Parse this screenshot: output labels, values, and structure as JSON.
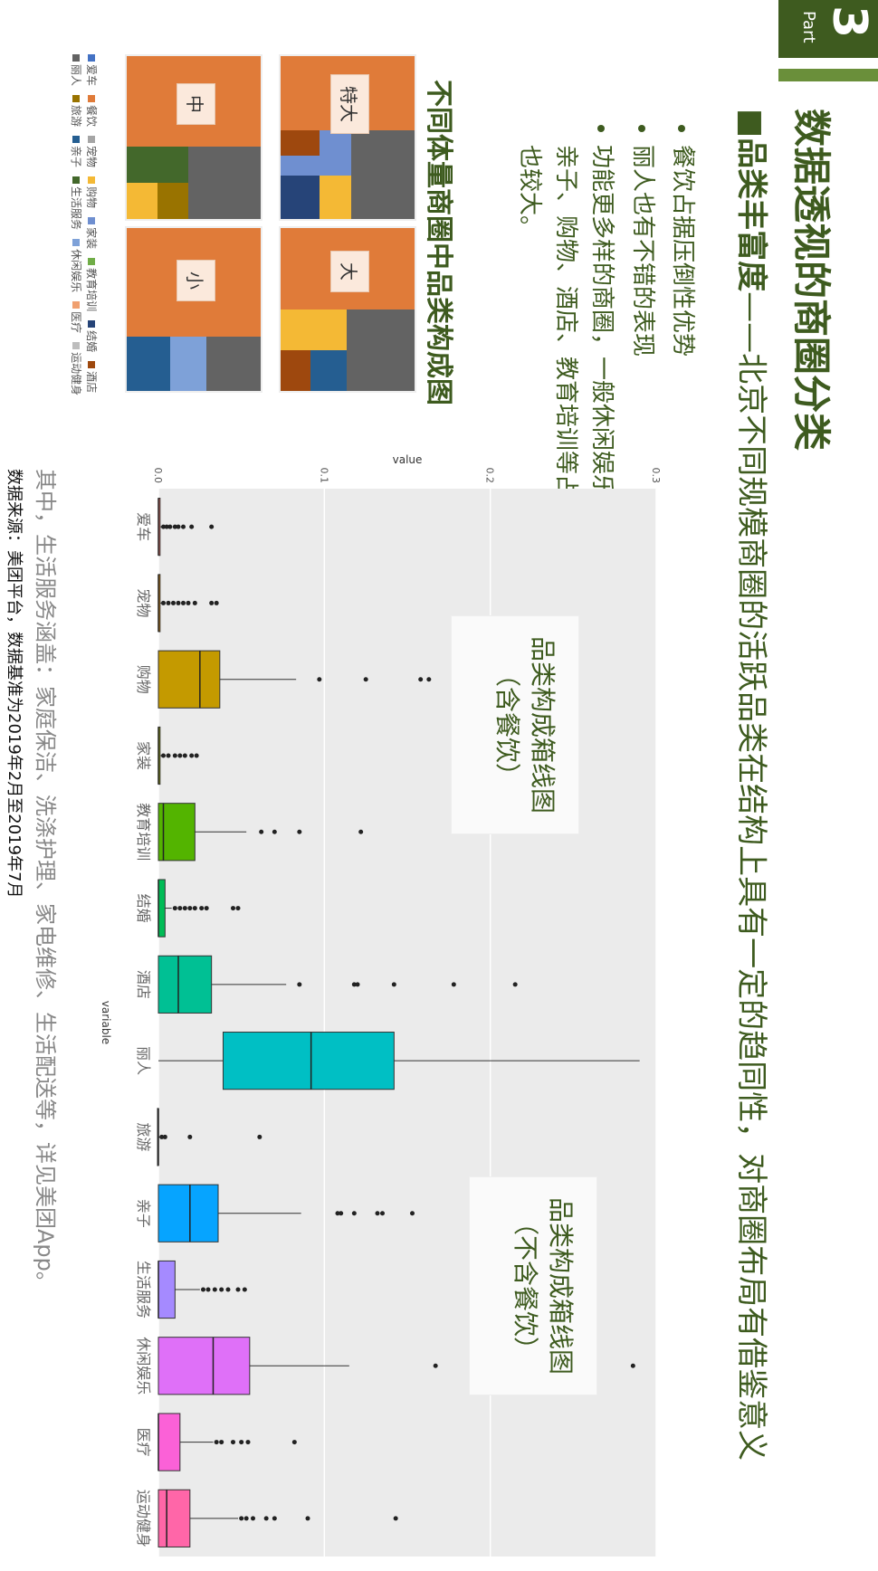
{
  "part": {
    "number": "3",
    "label": "Part"
  },
  "title": "数据透视的商圈分类",
  "subtitle": {
    "emph": "■品类丰富度",
    "rest": "——北京不同规模商圈的活跃品类在结构上具有一定的趋同性，对商圈布局有借鉴意义"
  },
  "bullets": [
    "餐饮占据压倒性优势",
    "丽人也有不错的表现",
    "功能更多样的商圈，一般休闲娱乐、亲子、购物、酒店、教育培训等占比也较大。"
  ],
  "treemap_title": "不同体量商圈中品类构成图",
  "treemap_labels": [
    "特大",
    "大",
    "中",
    "小"
  ],
  "legend": [
    {
      "name": "爱车",
      "color": "#4472c4"
    },
    {
      "name": "餐饮",
      "color": "#e07b39"
    },
    {
      "name": "宠物",
      "color": "#a5a5a5"
    },
    {
      "name": "购物",
      "color": "#f4b935"
    },
    {
      "name": "家装",
      "color": "#6f8fd0"
    },
    {
      "name": "教育培训",
      "color": "#70ad47"
    },
    {
      "name": "结婚",
      "color": "#264478"
    },
    {
      "name": "酒店",
      "color": "#9e480e"
    },
    {
      "name": "丽人",
      "color": "#636363"
    },
    {
      "name": "旅游",
      "color": "#997300"
    },
    {
      "name": "亲子",
      "color": "#255e91"
    },
    {
      "name": "生活服务",
      "color": "#43682b"
    },
    {
      "name": "休闲娱乐",
      "color": "#7ea1d8"
    },
    {
      "name": "医疗",
      "color": "#f0a070"
    },
    {
      "name": "运动健身",
      "color": "#bdbdbd"
    }
  ],
  "inset_labels": {
    "with": "品类构成箱线图\n（含餐饮）",
    "without": "品类构成箱线图\n（不含餐饮）"
  },
  "note": "其中，生活服务涵盖：家庭保洁、洗涤护理、家电维修、生活配送等，详见美团App。",
  "source": "数据来源：美团平台，数据基准为2019年2月至2019年7月",
  "chart_data": {
    "type": "box",
    "xlabel": "variable",
    "ylabel": "value",
    "ylim": [
      0,
      0.3
    ],
    "ticks": [
      "0.0",
      "0.1",
      "0.2",
      "0.3"
    ],
    "categories": [
      "爱车",
      "宠物",
      "购物",
      "家装",
      "教育培训",
      "结婚",
      "酒店",
      "丽人",
      "旅游",
      "亲子",
      "生活服务",
      "休闲娱乐",
      "医疗",
      "运动健身"
    ],
    "colors": [
      "#f8766d",
      "#e38900",
      "#c49a00",
      "#99a800",
      "#53b400",
      "#00bc56",
      "#00c094",
      "#00bfc4",
      "#00b6eb",
      "#06a4ff",
      "#a58aff",
      "#df70f8",
      "#fb61d7",
      "#ff66a8"
    ],
    "boxes": [
      {
        "q1": 0.0,
        "median": 0.0,
        "q3": 0.001,
        "min": 0.0,
        "max": 0.002,
        "outliers": [
          0.003,
          0.005,
          0.007,
          0.01,
          0.012,
          0.015,
          0.02,
          0.032
        ]
      },
      {
        "q1": 0.0,
        "median": 0.0,
        "q3": 0.001,
        "min": 0.0,
        "max": 0.002,
        "outliers": [
          0.003,
          0.006,
          0.009,
          0.012,
          0.015,
          0.018,
          0.022,
          0.032,
          0.035
        ]
      },
      {
        "q1": 0.0,
        "median": 0.025,
        "q3": 0.037,
        "min": 0.0,
        "max": 0.083,
        "outliers": [
          0.097,
          0.125,
          0.158,
          0.163
        ]
      },
      {
        "q1": 0.0,
        "median": 0.0,
        "q3": 0.001,
        "min": 0.0,
        "max": 0.002,
        "outliers": [
          0.003,
          0.006,
          0.01,
          0.013,
          0.016,
          0.02,
          0.023
        ]
      },
      {
        "q1": 0.0,
        "median": 0.003,
        "q3": 0.022,
        "min": 0.0,
        "max": 0.053,
        "outliers": [
          0.062,
          0.07,
          0.085,
          0.122
        ]
      },
      {
        "q1": 0.0,
        "median": 0.0,
        "q3": 0.004,
        "min": 0.0,
        "max": 0.008,
        "outliers": [
          0.01,
          0.013,
          0.016,
          0.019,
          0.022,
          0.026,
          0.029,
          0.045,
          0.048
        ]
      },
      {
        "q1": 0.0,
        "median": 0.012,
        "q3": 0.032,
        "min": 0.0,
        "max": 0.077,
        "outliers": [
          0.085,
          0.118,
          0.12,
          0.142,
          0.178,
          0.215
        ]
      },
      {
        "q1": 0.039,
        "median": 0.092,
        "q3": 0.142,
        "min": 0.0,
        "max": 0.29,
        "outliers": []
      },
      {
        "q1": 0.0,
        "median": 0.0,
        "q3": 0.0,
        "min": 0.0,
        "max": 0.001,
        "outliers": [
          0.002,
          0.004,
          0.019,
          0.061
        ]
      },
      {
        "q1": 0.0,
        "median": 0.019,
        "q3": 0.036,
        "min": 0.0,
        "max": 0.086,
        "outliers": [
          0.108,
          0.11,
          0.118,
          0.132,
          0.135,
          0.153
        ]
      },
      {
        "q1": 0.0,
        "median": 0.0,
        "q3": 0.01,
        "min": 0.0,
        "max": 0.025,
        "outliers": [
          0.027,
          0.03,
          0.034,
          0.038,
          0.042,
          0.048,
          0.052
        ]
      },
      {
        "q1": 0.0,
        "median": 0.033,
        "q3": 0.055,
        "min": 0.0,
        "max": 0.115,
        "outliers": [
          0.167,
          0.286
        ]
      },
      {
        "q1": 0.0,
        "median": 0.0,
        "q3": 0.013,
        "min": 0.0,
        "max": 0.033,
        "outliers": [
          0.035,
          0.038,
          0.045,
          0.05,
          0.054,
          0.082
        ]
      },
      {
        "q1": 0.0,
        "median": 0.005,
        "q3": 0.019,
        "min": 0.0,
        "max": 0.048,
        "outliers": [
          0.05,
          0.053,
          0.057,
          0.065,
          0.07,
          0.09,
          0.143
        ]
      }
    ]
  }
}
